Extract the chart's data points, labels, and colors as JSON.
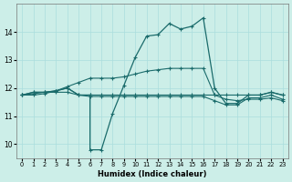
{
  "xlabel": "Humidex (Indice chaleur)",
  "background_color": "#cceee8",
  "line_color": "#1a6b6b",
  "grid_color": "#aadddd",
  "xlim": [
    -0.5,
    23.5
  ],
  "ylim": [
    9.5,
    15.0
  ],
  "yticks": [
    10,
    11,
    12,
    13,
    14
  ],
  "xticks": [
    0,
    1,
    2,
    3,
    4,
    5,
    6,
    7,
    8,
    9,
    10,
    11,
    12,
    13,
    14,
    15,
    16,
    17,
    18,
    19,
    20,
    21,
    22,
    23
  ],
  "line1_x": [
    0,
    1,
    2,
    3,
    4,
    5,
    6,
    7,
    8,
    9,
    10,
    11,
    12,
    13,
    14,
    15,
    16,
    17,
    18,
    19,
    20,
    21,
    22,
    23
  ],
  "line1_y": [
    11.75,
    11.85,
    11.85,
    11.85,
    11.85,
    11.75,
    11.75,
    11.75,
    11.75,
    11.75,
    11.75,
    11.75,
    11.75,
    11.75,
    11.75,
    11.75,
    11.75,
    11.75,
    11.75,
    11.75,
    11.75,
    11.75,
    11.85,
    11.75
  ],
  "line2_x": [
    0,
    1,
    2,
    3,
    4,
    5,
    6,
    7,
    8,
    9,
    10,
    11,
    12,
    13,
    14,
    15,
    16,
    17,
    18,
    19,
    20,
    21,
    22,
    23
  ],
  "line2_y": [
    11.75,
    11.8,
    11.85,
    11.9,
    12.0,
    11.75,
    11.7,
    11.7,
    11.7,
    11.7,
    11.7,
    11.7,
    11.7,
    11.7,
    11.7,
    11.7,
    11.7,
    11.55,
    11.4,
    11.4,
    11.65,
    11.65,
    11.75,
    11.6
  ],
  "line3_x": [
    0,
    1,
    2,
    3,
    4,
    5,
    6,
    7,
    8,
    9,
    10,
    11,
    12,
    13,
    14,
    15,
    16,
    17,
    18,
    19,
    20,
    21,
    22,
    23
  ],
  "line3_y": [
    11.75,
    11.75,
    11.8,
    11.9,
    12.05,
    12.2,
    12.35,
    12.35,
    12.35,
    12.4,
    12.5,
    12.6,
    12.65,
    12.7,
    12.7,
    12.7,
    12.7,
    11.75,
    11.6,
    11.55,
    11.6,
    11.6,
    11.65,
    11.55
  ],
  "line4_x": [
    0,
    1,
    2,
    3,
    4,
    5,
    6,
    6,
    7,
    8,
    9,
    10,
    11,
    12,
    13,
    14,
    15,
    16,
    17,
    18,
    19,
    20,
    21,
    22,
    23
  ],
  "line4_y": [
    11.75,
    11.85,
    11.85,
    11.9,
    12.0,
    11.75,
    11.75,
    9.8,
    9.8,
    11.1,
    12.1,
    13.1,
    13.85,
    13.9,
    14.3,
    14.1,
    14.2,
    14.5,
    12.0,
    11.45,
    11.45,
    11.75,
    11.75,
    11.85,
    11.75
  ]
}
